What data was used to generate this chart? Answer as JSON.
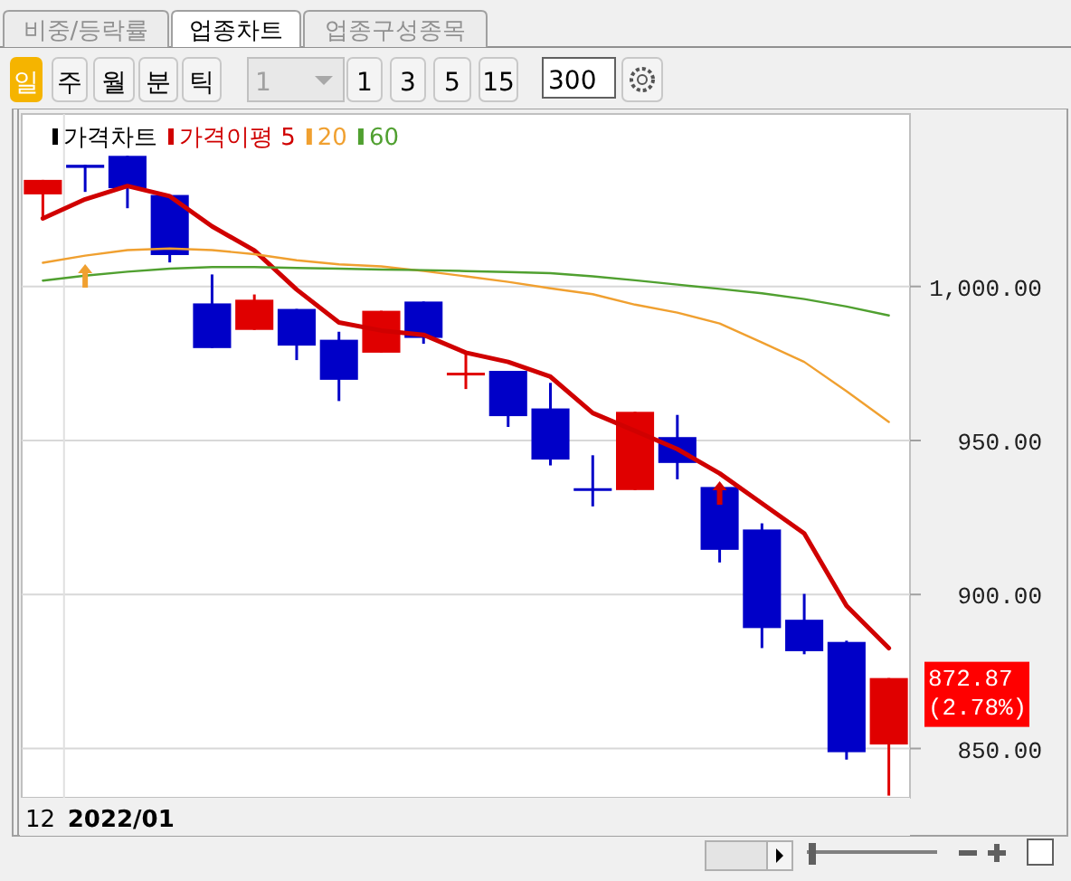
{
  "chart_data": {
    "type": "candlestick",
    "categories": [
      null,
      null,
      null,
      null,
      null,
      null,
      null,
      null,
      null,
      null,
      null,
      null,
      null,
      null,
      null,
      null,
      null,
      null,
      null,
      null,
      null
    ],
    "series": [
      {
        "name": "가격차트",
        "color": "#000000",
        "ohlc": [
          [
            1029.9,
            1034.6,
            1022.1,
            1034.6
          ],
          [
            1039.5,
            1039.5,
            1030.7,
            1038.5
          ],
          [
            1042.4,
            1042.4,
            1025.4,
            1031.9
          ],
          [
            1029.7,
            1029.7,
            1007.8,
            1010.2
          ],
          [
            994.5,
            1003.9,
            980.0,
            980.0
          ],
          [
            985.9,
            997.4,
            985.9,
            995.7
          ],
          [
            992.7,
            992.7,
            976.1,
            980.8
          ],
          [
            982.7,
            985.3,
            962.8,
            969.7
          ],
          [
            978.5,
            992.1,
            978.5,
            992.1
          ],
          [
            995.1,
            995.1,
            981.4,
            983.3
          ],
          [
            972.0,
            978.5,
            966.7,
            972.0
          ],
          [
            972.6,
            972.6,
            954.4,
            957.9
          ],
          [
            960.4,
            968.7,
            941.9,
            943.8
          ],
          [
            934.5,
            945.2,
            928.6,
            934.3
          ],
          [
            933.9,
            959.3,
            933.9,
            959.3
          ],
          [
            951.1,
            958.3,
            937.4,
            942.7
          ],
          [
            934.9,
            934.9,
            910.4,
            914.5
          ],
          [
            921.1,
            923.1,
            882.6,
            889.1
          ],
          [
            891.8,
            900.2,
            880.6,
            881.6
          ],
          [
            884.6,
            885.0,
            846.4,
            848.8
          ],
          [
            851.3,
            872.87,
            834.7,
            872.87
          ]
        ],
        "colors": [
          "#e00000",
          "#0000c8",
          "#0000c8",
          "#0000c8",
          "#0000c8",
          "#e00000",
          "#0000c8",
          "#0000c8",
          "#e00000",
          "#0000c8",
          "#e00000",
          "#0000c8",
          "#0000c8",
          "#0000c8",
          "#e00000",
          "#0000c8",
          "#0000c8",
          "#0000c8",
          "#0000c8",
          "#0000c8",
          "#e00000"
        ]
      },
      {
        "name": "가격이평 5",
        "type": "line",
        "color": "#d00000",
        "values": [
          1022.1,
          1028.3,
          1032.6,
          1029.3,
          1019.5,
          1011.7,
          999.0,
          988.3,
          985.7,
          984.3,
          978.5,
          975.5,
          970.7,
          958.9,
          953.1,
          947.2,
          939.3,
          929.6,
          919.8,
          896.3,
          882.6
        ]
      },
      {
        "name": "20",
        "type": "line",
        "color": "#f0a030",
        "values": [
          1007.7,
          1010.0,
          1011.8,
          1012.3,
          1011.8,
          1010.5,
          1008.5,
          1007.2,
          1006.5,
          1005.0,
          1003.3,
          1001.5,
          999.4,
          997.5,
          994.1,
          991.5,
          988.0,
          981.8,
          975.5,
          966.0,
          956.0
        ]
      },
      {
        "name": "60",
        "type": "line",
        "color": "#50a030",
        "values": [
          1001.9,
          1003.5,
          1004.8,
          1005.8,
          1006.3,
          1006.3,
          1006.0,
          1005.8,
          1005.5,
          1005.3,
          1005.0,
          1004.7,
          1004.3,
          1003.3,
          1002.0,
          1000.6,
          999.2,
          997.8,
          995.9,
          993.5,
          990.6
        ]
      }
    ],
    "ylim": [
      834,
      1056
    ],
    "yticks": [
      {
        "value": 1000,
        "label": "1,000.00"
      },
      {
        "value": 950,
        "label": "950.00"
      },
      {
        "value": 900,
        "label": "900.00"
      },
      {
        "value": 850,
        "label": "850.00"
      }
    ],
    "grid": "y",
    "legend": "top left",
    "annotations": [
      "비중/등락률",
      "업종차트",
      "업종구성종목",
      "일",
      "주",
      "월",
      "분",
      "틱",
      "1",
      "1",
      "3",
      "5",
      "15",
      "300",
      "872.87\n(2.78%)",
      "12",
      "2022/01"
    ]
  }
}
